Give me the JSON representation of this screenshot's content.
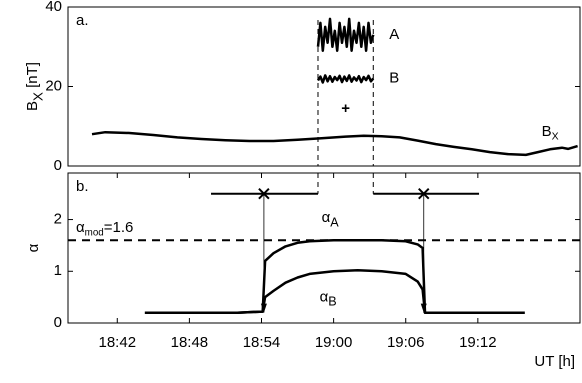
{
  "chart_data": [
    {
      "type": "line",
      "panel_label": "a.",
      "ylabel": {
        "base": "B",
        "sub": "X",
        "rest": " [nT]"
      },
      "xlim": [
        37.9,
        80.5
      ],
      "ylim": [
        0,
        40
      ],
      "yticks": [
        0,
        20,
        40
      ],
      "vlines": [
        58.7,
        63.3
      ],
      "marker": "+",
      "series": [
        {
          "label": {
            "base": "B",
            "sub": "X"
          },
          "color": "#000",
          "x": [
            39.9,
            41,
            43,
            45,
            47,
            49,
            51,
            53,
            55,
            57,
            59,
            61,
            62.5,
            64,
            65.5,
            67,
            68.5,
            70,
            71.5,
            73,
            74.5,
            76,
            77,
            78,
            79,
            79.5,
            80.3
          ],
          "values": [
            8,
            8.5,
            8.3,
            7.8,
            7.2,
            6.8,
            6.5,
            6.3,
            6.3,
            6.6,
            7,
            7.4,
            7.6,
            7.5,
            7.2,
            6.4,
            5.5,
            4.8,
            4.2,
            3.5,
            3,
            2.8,
            3.5,
            4.2,
            4.6,
            4.3,
            5
          ]
        },
        {
          "name": "A",
          "color": "#000",
          "x": [
            58.7,
            58.9,
            59.1,
            59.3,
            59.5,
            59.7,
            59.9,
            60.1,
            60.3,
            60.5,
            60.7,
            60.9,
            61.1,
            61.3,
            61.5,
            61.7,
            61.9,
            62.1,
            62.3,
            62.5,
            62.7,
            62.9,
            63.1,
            63.3
          ],
          "values": [
            30,
            36,
            29,
            35,
            31,
            37,
            30,
            34,
            29,
            36,
            31,
            35,
            30,
            37,
            29,
            34,
            31,
            36,
            30,
            35,
            29,
            36,
            31,
            33
          ]
        },
        {
          "name": "B",
          "color": "#000",
          "x": [
            58.7,
            58.9,
            59.1,
            59.3,
            59.5,
            59.7,
            59.9,
            60.1,
            60.3,
            60.5,
            60.7,
            60.9,
            61.1,
            61.3,
            61.5,
            61.7,
            61.9,
            62.1,
            62.3,
            62.5,
            62.7,
            62.9,
            63.1,
            63.3
          ],
          "values": [
            21.5,
            22.5,
            21,
            22.8,
            21.3,
            22.6,
            21.2,
            22.4,
            21.6,
            22.7,
            21.1,
            22.5,
            21.4,
            22.8,
            21.2,
            22.3,
            21.5,
            22.6,
            21.1,
            22.4,
            21.6,
            22.7,
            21.3,
            22
          ]
        }
      ]
    },
    {
      "type": "line",
      "panel_label": "b.",
      "ylabel": "α",
      "xlabel": "UT [h]",
      "xlim": [
        37.9,
        80.5
      ],
      "ylim": [
        0,
        2.9
      ],
      "yticks": [
        0,
        1,
        2
      ],
      "xticks": [
        {
          "value": 42,
          "label": "18:42"
        },
        {
          "value": 48,
          "label": "18:48"
        },
        {
          "value": 54,
          "label": "18:54"
        },
        {
          "value": 60,
          "label": "19:00"
        },
        {
          "value": 66,
          "label": "19:06"
        },
        {
          "value": 72,
          "label": "19:12"
        }
      ],
      "hline": {
        "value": 1.6,
        "label": {
          "base": "α",
          "sub": "mod",
          "rest": "=1.6"
        }
      },
      "intervals": [
        {
          "start": 49.8,
          "end": 58.7,
          "center": 54.2,
          "level": 2.5,
          "arrow_end": 0.2
        },
        {
          "start": 63.3,
          "end": 72.1,
          "center": 67.5,
          "level": 2.5,
          "arrow_end": 0.2
        }
      ],
      "series": [
        {
          "label": {
            "base": "α",
            "sub": "A"
          },
          "color": "#000",
          "x": [
            44.3,
            46,
            48,
            50,
            52,
            54.1,
            54.3,
            55,
            56,
            57,
            58,
            60,
            62,
            64,
            66,
            67,
            67.4,
            67.6,
            69,
            71,
            73,
            75.9
          ],
          "values": [
            0.2,
            0.2,
            0.2,
            0.2,
            0.2,
            0.22,
            1.2,
            1.35,
            1.48,
            1.55,
            1.58,
            1.6,
            1.6,
            1.6,
            1.58,
            1.52,
            1.45,
            0.2,
            0.2,
            0.2,
            0.2,
            0.2
          ]
        },
        {
          "label": {
            "base": "α",
            "sub": "B"
          },
          "color": "#000",
          "x": [
            44.3,
            46,
            48,
            50,
            52,
            54.1,
            54.3,
            55,
            56,
            57,
            58,
            60,
            62,
            64,
            66,
            67,
            67.4,
            67.6,
            69,
            71,
            73,
            75.9
          ],
          "values": [
            0.2,
            0.2,
            0.2,
            0.2,
            0.2,
            0.22,
            0.5,
            0.62,
            0.78,
            0.88,
            0.95,
            1.0,
            1.02,
            1.0,
            0.95,
            0.8,
            0.65,
            0.2,
            0.2,
            0.2,
            0.2,
            0.2
          ]
        }
      ]
    }
  ]
}
